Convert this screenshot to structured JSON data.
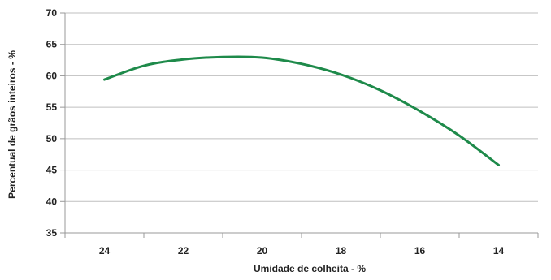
{
  "chart_data": {
    "type": "line",
    "title": "",
    "xlabel": "Umidade de colheita - %",
    "ylabel": "Percentual de grãos inteiros - %",
    "x_ticks": [
      "24",
      "22",
      "20",
      "18",
      "16",
      "14"
    ],
    "y_ticks": [
      "35",
      "40",
      "45",
      "50",
      "55",
      "60",
      "65",
      "70"
    ],
    "xlim": [
      25,
      13
    ],
    "ylim": [
      35,
      70
    ],
    "x_direction": "descending",
    "grid": {
      "horizontal": true,
      "vertical": false
    },
    "legend": "none",
    "series": [
      {
        "color": "#1e8a4a",
        "x": [
          24,
          23,
          22,
          21,
          20,
          19,
          18,
          17,
          16,
          15,
          14
        ],
        "y": [
          59.4,
          61.6,
          62.6,
          63.0,
          62.9,
          61.9,
          60.2,
          57.7,
          54.4,
          50.5,
          45.8
        ]
      }
    ]
  }
}
